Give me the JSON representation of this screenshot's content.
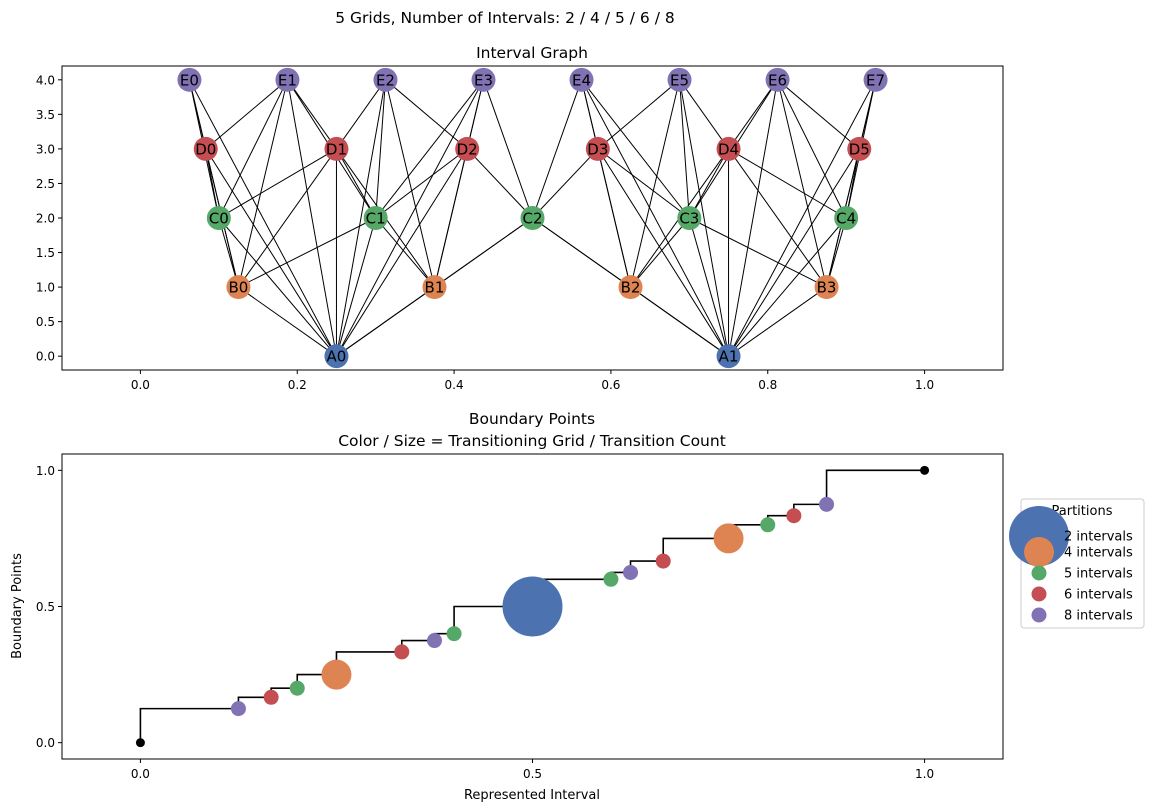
{
  "figure": {
    "suptitle": "5 Grids, Number of Intervals: 2 / 4 / 5 / 6 / 8"
  },
  "colors": {
    "2": "#4c72b0",
    "4": "#dd8452",
    "5": "#55a868",
    "6": "#c44e52",
    "8": "#8172b3",
    "edge": "#000000",
    "endpoint": "#000000"
  },
  "chart_data": [
    {
      "type": "network",
      "title": "Interval Graph",
      "xlim": [
        -0.1,
        1.1
      ],
      "ylim": [
        -0.2,
        4.2
      ],
      "xticks": [
        "0.0",
        "0.2",
        "0.4",
        "0.6",
        "0.8",
        "1.0"
      ],
      "yticks": [
        "0.0",
        "0.5",
        "1.0",
        "1.5",
        "2.0",
        "2.5",
        "3.0",
        "3.5",
        "4.0"
      ],
      "nodes": [
        {
          "id": "A0",
          "x": 0.25,
          "y": 0,
          "grid": "2"
        },
        {
          "id": "A1",
          "x": 0.75,
          "y": 0,
          "grid": "2"
        },
        {
          "id": "B0",
          "x": 0.125,
          "y": 1,
          "grid": "4"
        },
        {
          "id": "B1",
          "x": 0.375,
          "y": 1,
          "grid": "4"
        },
        {
          "id": "B2",
          "x": 0.625,
          "y": 1,
          "grid": "4"
        },
        {
          "id": "B3",
          "x": 0.875,
          "y": 1,
          "grid": "4"
        },
        {
          "id": "C0",
          "x": 0.1,
          "y": 2,
          "grid": "5"
        },
        {
          "id": "C1",
          "x": 0.3,
          "y": 2,
          "grid": "5"
        },
        {
          "id": "C2",
          "x": 0.5,
          "y": 2,
          "grid": "5"
        },
        {
          "id": "C3",
          "x": 0.7,
          "y": 2,
          "grid": "5"
        },
        {
          "id": "C4",
          "x": 0.9,
          "y": 2,
          "grid": "5"
        },
        {
          "id": "D0",
          "x": 0.0833,
          "y": 3,
          "grid": "6"
        },
        {
          "id": "D1",
          "x": 0.25,
          "y": 3,
          "grid": "6"
        },
        {
          "id": "D2",
          "x": 0.4167,
          "y": 3,
          "grid": "6"
        },
        {
          "id": "D3",
          "x": 0.5833,
          "y": 3,
          "grid": "6"
        },
        {
          "id": "D4",
          "x": 0.75,
          "y": 3,
          "grid": "6"
        },
        {
          "id": "D5",
          "x": 0.9167,
          "y": 3,
          "grid": "6"
        },
        {
          "id": "E0",
          "x": 0.0625,
          "y": 4,
          "grid": "8"
        },
        {
          "id": "E1",
          "x": 0.1875,
          "y": 4,
          "grid": "8"
        },
        {
          "id": "E2",
          "x": 0.3125,
          "y": 4,
          "grid": "8"
        },
        {
          "id": "E3",
          "x": 0.4375,
          "y": 4,
          "grid": "8"
        },
        {
          "id": "E4",
          "x": 0.5625,
          "y": 4,
          "grid": "8"
        },
        {
          "id": "E5",
          "x": 0.6875,
          "y": 4,
          "grid": "8"
        },
        {
          "id": "E6",
          "x": 0.8125,
          "y": 4,
          "grid": "8"
        },
        {
          "id": "E7",
          "x": 0.9375,
          "y": 4,
          "grid": "8"
        }
      ],
      "edges": [
        [
          "A0",
          "B0"
        ],
        [
          "A0",
          "B1"
        ],
        [
          "A0",
          "C0"
        ],
        [
          "A0",
          "C1"
        ],
        [
          "A0",
          "C2"
        ],
        [
          "A0",
          "D0"
        ],
        [
          "A0",
          "D1"
        ],
        [
          "A0",
          "D2"
        ],
        [
          "A0",
          "E0"
        ],
        [
          "A0",
          "E1"
        ],
        [
          "A0",
          "E2"
        ],
        [
          "A0",
          "E3"
        ],
        [
          "A1",
          "B2"
        ],
        [
          "A1",
          "B3"
        ],
        [
          "A1",
          "C2"
        ],
        [
          "A1",
          "C3"
        ],
        [
          "A1",
          "C4"
        ],
        [
          "A1",
          "D3"
        ],
        [
          "A1",
          "D4"
        ],
        [
          "A1",
          "D5"
        ],
        [
          "A1",
          "E4"
        ],
        [
          "A1",
          "E5"
        ],
        [
          "A1",
          "E6"
        ],
        [
          "A1",
          "E7"
        ],
        [
          "B0",
          "C0"
        ],
        [
          "B0",
          "C1"
        ],
        [
          "B0",
          "D0"
        ],
        [
          "B0",
          "D1"
        ],
        [
          "B0",
          "E0"
        ],
        [
          "B0",
          "E1"
        ],
        [
          "B1",
          "C1"
        ],
        [
          "B1",
          "C2"
        ],
        [
          "B1",
          "D1"
        ],
        [
          "B1",
          "D2"
        ],
        [
          "B1",
          "E2"
        ],
        [
          "B1",
          "E3"
        ],
        [
          "B2",
          "C2"
        ],
        [
          "B2",
          "C3"
        ],
        [
          "B2",
          "D3"
        ],
        [
          "B2",
          "D4"
        ],
        [
          "B2",
          "E4"
        ],
        [
          "B2",
          "E5"
        ],
        [
          "B3",
          "C3"
        ],
        [
          "B3",
          "C4"
        ],
        [
          "B3",
          "D4"
        ],
        [
          "B3",
          "D5"
        ],
        [
          "B3",
          "E6"
        ],
        [
          "B3",
          "E7"
        ],
        [
          "C0",
          "D0"
        ],
        [
          "C0",
          "D1"
        ],
        [
          "C0",
          "E0"
        ],
        [
          "C0",
          "E1"
        ],
        [
          "C1",
          "D1"
        ],
        [
          "C1",
          "D2"
        ],
        [
          "C1",
          "E1"
        ],
        [
          "C1",
          "E2"
        ],
        [
          "C1",
          "E3"
        ],
        [
          "C2",
          "D2"
        ],
        [
          "C2",
          "D3"
        ],
        [
          "C2",
          "E3"
        ],
        [
          "C2",
          "E4"
        ],
        [
          "C3",
          "D3"
        ],
        [
          "C3",
          "D4"
        ],
        [
          "C3",
          "E4"
        ],
        [
          "C3",
          "E5"
        ],
        [
          "C3",
          "E6"
        ],
        [
          "C4",
          "D4"
        ],
        [
          "C4",
          "D5"
        ],
        [
          "C4",
          "E6"
        ],
        [
          "C4",
          "E7"
        ],
        [
          "D0",
          "E0"
        ],
        [
          "D0",
          "E1"
        ],
        [
          "D1",
          "E1"
        ],
        [
          "D1",
          "E2"
        ],
        [
          "D2",
          "E2"
        ],
        [
          "D2",
          "E3"
        ],
        [
          "D3",
          "E4"
        ],
        [
          "D3",
          "E5"
        ],
        [
          "D4",
          "E5"
        ],
        [
          "D4",
          "E6"
        ],
        [
          "D5",
          "E6"
        ],
        [
          "D5",
          "E7"
        ]
      ]
    },
    {
      "type": "scatter",
      "title": "Boundary Points",
      "subtitle": "Color / Size = Transitioning Grid / Transition Count",
      "xlabel": "Represented Interval",
      "ylabel": "Boundary Points",
      "xlim": [
        -0.1,
        1.1
      ],
      "ylim": [
        -0.06,
        1.06
      ],
      "xticks": [
        {
          "v": 0,
          "label": "0.0"
        },
        {
          "v": 0.5,
          "label": "0.5"
        },
        {
          "v": 1,
          "label": "1.0"
        }
      ],
      "yticks": [
        {
          "v": 0,
          "label": "0.0"
        },
        {
          "v": 0.5,
          "label": "0.5"
        },
        {
          "v": 1,
          "label": "1.0"
        }
      ],
      "step_line": [
        0,
        0.125,
        0.1667,
        0.2,
        0.25,
        0.3333,
        0.375,
        0.4,
        0.5,
        0.6,
        0.625,
        0.6667,
        0.75,
        0.8,
        0.8333,
        0.875,
        1.0
      ],
      "endpoints": [
        {
          "x": 0,
          "y": 0
        },
        {
          "x": 1,
          "y": 1
        }
      ],
      "points": [
        {
          "x": 0.125,
          "y": 0.125,
          "grid": "8",
          "count": 1
        },
        {
          "x": 0.1667,
          "y": 0.1667,
          "grid": "6",
          "count": 1
        },
        {
          "x": 0.2,
          "y": 0.2,
          "grid": "5",
          "count": 1
        },
        {
          "x": 0.25,
          "y": 0.25,
          "grid": "4",
          "count": 2
        },
        {
          "x": 0.3333,
          "y": 0.3333,
          "grid": "6",
          "count": 1
        },
        {
          "x": 0.375,
          "y": 0.375,
          "grid": "8",
          "count": 1
        },
        {
          "x": 0.4,
          "y": 0.4,
          "grid": "5",
          "count": 1
        },
        {
          "x": 0.5,
          "y": 0.5,
          "grid": "2",
          "count": 4
        },
        {
          "x": 0.6,
          "y": 0.6,
          "grid": "5",
          "count": 1
        },
        {
          "x": 0.625,
          "y": 0.625,
          "grid": "8",
          "count": 1
        },
        {
          "x": 0.6667,
          "y": 0.6667,
          "grid": "6",
          "count": 1
        },
        {
          "x": 0.75,
          "y": 0.75,
          "grid": "4",
          "count": 2
        },
        {
          "x": 0.8,
          "y": 0.8,
          "grid": "5",
          "count": 1
        },
        {
          "x": 0.8333,
          "y": 0.8333,
          "grid": "6",
          "count": 1
        },
        {
          "x": 0.875,
          "y": 0.875,
          "grid": "8",
          "count": 1
        }
      ],
      "legend": {
        "title": "Partitions",
        "placement": "right",
        "entries": [
          {
            "label": "2 intervals",
            "grid": "2",
            "count": 4
          },
          {
            "label": "4 intervals",
            "grid": "4",
            "count": 2
          },
          {
            "label": "5 intervals",
            "grid": "5",
            "count": 1
          },
          {
            "label": "6 intervals",
            "grid": "6",
            "count": 1
          },
          {
            "label": "8 intervals",
            "grid": "8",
            "count": 1
          }
        ]
      }
    }
  ]
}
